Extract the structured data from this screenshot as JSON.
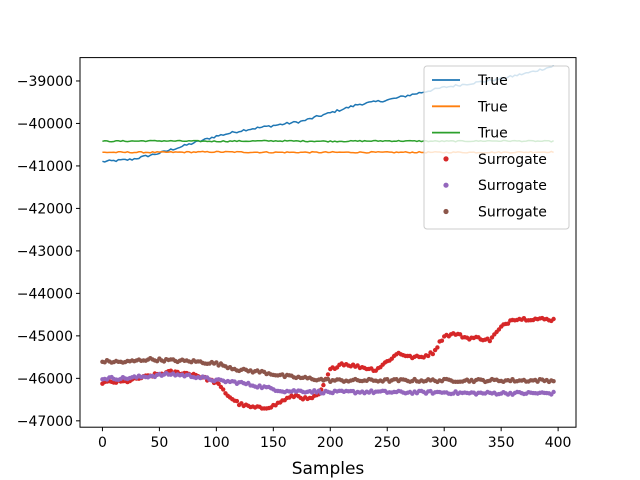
{
  "chart_data": {
    "type": "line",
    "title": "",
    "xlabel": "Samples",
    "ylabel": "",
    "xlim": [
      -19.7,
      415.7
    ],
    "ylim": [
      -47150,
      -38450
    ],
    "x_ticks": [
      0,
      50,
      100,
      150,
      200,
      250,
      300,
      350,
      400
    ],
    "y_ticks": [
      -47000,
      -46000,
      -45000,
      -44000,
      -43000,
      -42000,
      -41000,
      -40000,
      -39000
    ],
    "x_tick_labels": [
      "0",
      "50",
      "100",
      "150",
      "200",
      "250",
      "300",
      "350",
      "400"
    ],
    "y_tick_labels": [
      "−47000",
      "−46000",
      "−45000",
      "−44000",
      "−43000",
      "−42000",
      "−41000",
      "−40000",
      "−39000"
    ],
    "grid": false,
    "legend_position": "top-right",
    "series": [
      {
        "name": "True",
        "style": "line",
        "color": "#1f77b4",
        "x": [
          0,
          25,
          50,
          75,
          100,
          125,
          150,
          175,
          200,
          225,
          250,
          275,
          300,
          325,
          350,
          375,
          396
        ],
        "y": [
          -40900,
          -40850,
          -40700,
          -40500,
          -40300,
          -40150,
          -40050,
          -39950,
          -39750,
          -39550,
          -39450,
          -39300,
          -39150,
          -39050,
          -38950,
          -38800,
          -38650
        ]
      },
      {
        "name": "True",
        "style": "line",
        "color": "#ff7f0e",
        "x": [
          0,
          50,
          100,
          150,
          200,
          250,
          300,
          350,
          396
        ],
        "y": [
          -40680,
          -40680,
          -40670,
          -40680,
          -40680,
          -40680,
          -40680,
          -40680,
          -40670
        ]
      },
      {
        "name": "True",
        "style": "line",
        "color": "#2ca02c",
        "x": [
          0,
          50,
          100,
          150,
          200,
          250,
          300,
          350,
          396
        ],
        "y": [
          -40420,
          -40410,
          -40420,
          -40410,
          -40420,
          -40410,
          -40420,
          -40410,
          -40420
        ]
      },
      {
        "name": "Surrogate",
        "style": "points",
        "color": "#d62728",
        "x": [
          0,
          20,
          40,
          60,
          80,
          100,
          110,
          120,
          130,
          140,
          150,
          160,
          170,
          180,
          190,
          200,
          210,
          220,
          230,
          240,
          250,
          260,
          270,
          280,
          290,
          300,
          310,
          320,
          330,
          340,
          350,
          360,
          370,
          380,
          396
        ],
        "y": [
          -46100,
          -46080,
          -45950,
          -45850,
          -45900,
          -46100,
          -46400,
          -46600,
          -46680,
          -46700,
          -46650,
          -46500,
          -46400,
          -46500,
          -46400,
          -45800,
          -45650,
          -45700,
          -45750,
          -45800,
          -45600,
          -45400,
          -45500,
          -45500,
          -45400,
          -45000,
          -44950,
          -45050,
          -45050,
          -45100,
          -44800,
          -44600,
          -44600,
          -44600,
          -44620
        ]
      },
      {
        "name": "Surrogate",
        "style": "points",
        "color": "#9467bd",
        "x": [
          0,
          20,
          40,
          60,
          80,
          100,
          120,
          140,
          160,
          180,
          200,
          220,
          240,
          260,
          280,
          300,
          320,
          340,
          360,
          380,
          396
        ],
        "y": [
          -46000,
          -46000,
          -45950,
          -45900,
          -45950,
          -46050,
          -46100,
          -46200,
          -46300,
          -46300,
          -46330,
          -46320,
          -46320,
          -46330,
          -46330,
          -46330,
          -46350,
          -46350,
          -46350,
          -46350,
          -46350
        ]
      },
      {
        "name": "Surrogate",
        "style": "points",
        "color": "#8c564b",
        "x": [
          0,
          20,
          40,
          60,
          80,
          100,
          120,
          140,
          160,
          180,
          200,
          220,
          240,
          260,
          280,
          300,
          320,
          340,
          360,
          380,
          396
        ],
        "y": [
          -45600,
          -45620,
          -45550,
          -45580,
          -45600,
          -45650,
          -45800,
          -45850,
          -45950,
          -46000,
          -46050,
          -46050,
          -46050,
          -46050,
          -46050,
          -46050,
          -46050,
          -46050,
          -46050,
          -46050,
          -46050
        ]
      }
    ]
  }
}
